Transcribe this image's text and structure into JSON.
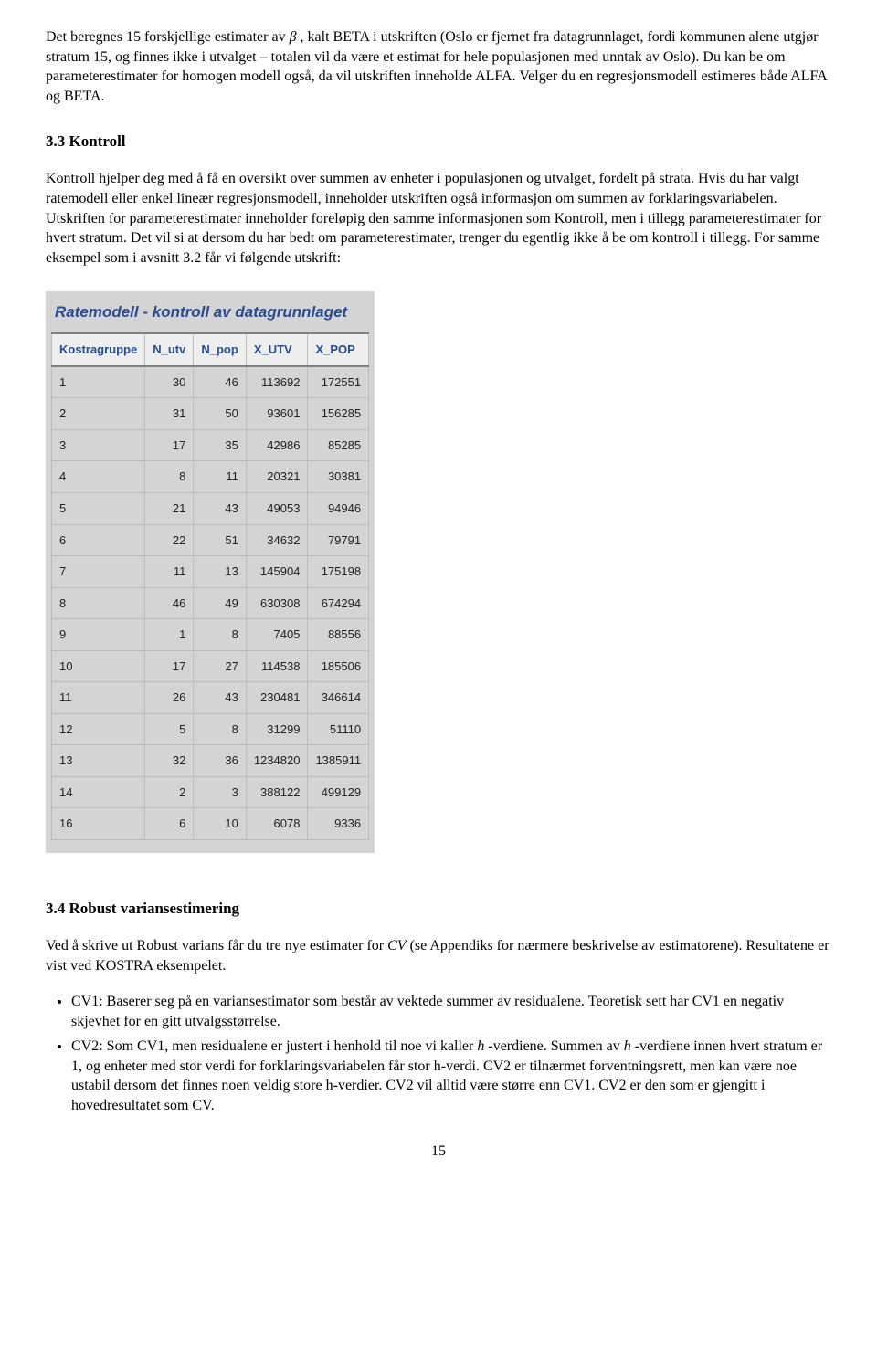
{
  "paragraphs": {
    "p1a": "Det beregnes 15 forskjellige estimater av ",
    "p1_beta": "β",
    "p1b": " , kalt BETA i utskriften (Oslo er fjernet fra datagrunnlaget, fordi kommunen alene utgjør stratum 15, og finnes ikke i utvalget – totalen vil da være et estimat for hele populasjonen med unntak av Oslo). Du kan be om parameterestimater for homogen modell også, da vil utskriften inneholde ALFA. Velger du en regresjonsmodell estimeres både ALFA og BETA."
  },
  "section33": {
    "heading": "3.3 Kontroll",
    "text": "Kontroll hjelper deg med å få en oversikt over summen av enheter i populasjonen og utvalget, fordelt på strata. Hvis du har valgt ratemodell eller enkel lineær regresjonsmodell, inneholder utskriften også informasjon om summen av forklaringsvariabelen. Utskriften for parameterestimater inneholder foreløpig den samme informasjonen som Kontroll, men i tillegg parameterestimater for hvert stratum. Det vil si at dersom du har bedt om parameterestimater, trenger du egentlig ikke å be om kontroll i tillegg. For samme eksempel som i avsnitt 3.2 får vi følgende utskrift:"
  },
  "table": {
    "title": "Ratemodell - kontroll av datagrunnlaget",
    "title_color": "#2a4d8f",
    "header_bg": "#eeeeee",
    "panel_bg": "#d4d4d4",
    "grid_color": "#bcbcbc",
    "header_color": "#2a4d8f",
    "font_family": "Arial",
    "columns": [
      "Kostragruppe",
      "N_utv",
      "N_pop",
      "X_UTV",
      "X_POP"
    ],
    "rows": [
      [
        "1",
        "30",
        "46",
        "113692",
        "172551"
      ],
      [
        "2",
        "31",
        "50",
        "93601",
        "156285"
      ],
      [
        "3",
        "17",
        "35",
        "42986",
        "85285"
      ],
      [
        "4",
        "8",
        "11",
        "20321",
        "30381"
      ],
      [
        "5",
        "21",
        "43",
        "49053",
        "94946"
      ],
      [
        "6",
        "22",
        "51",
        "34632",
        "79791"
      ],
      [
        "7",
        "11",
        "13",
        "145904",
        "175198"
      ],
      [
        "8",
        "46",
        "49",
        "630308",
        "674294"
      ],
      [
        "9",
        "1",
        "8",
        "7405",
        "88556"
      ],
      [
        "10",
        "17",
        "27",
        "114538",
        "185506"
      ],
      [
        "11",
        "26",
        "43",
        "230481",
        "346614"
      ],
      [
        "12",
        "5",
        "8",
        "31299",
        "51110"
      ],
      [
        "13",
        "32",
        "36",
        "1234820",
        "1385911"
      ],
      [
        "14",
        "2",
        "3",
        "388122",
        "499129"
      ],
      [
        "16",
        "6",
        "10",
        "6078",
        "9336"
      ]
    ]
  },
  "section34": {
    "heading": "3.4 Robust variansestimering",
    "intro_a": "Ved å skrive ut Robust varians får du tre nye estimater for ",
    "intro_cv": "CV",
    "intro_b": " (se Appendiks for nærmere beskrivelse av estimatorene). Resultatene er vist ved KOSTRA eksempelet.",
    "bullets": {
      "b1": "CV1: Baserer seg på en variansestimator som består av vektede summer av residualene. Teoretisk sett har CV1 en negativ skjevhet for en gitt utvalgsstørrelse.",
      "b2_a": "CV2: Som CV1, men residualene er justert i henhold til noe vi kaller ",
      "b2_h1": "h",
      "b2_b": " -verdiene. Summen av ",
      "b2_h2": "h",
      "b2_c": " -verdiene innen hvert stratum er 1, og enheter med stor verdi for forklaringsvariabelen får stor h-verdi. CV2 er tilnærmet forventningsrett, men kan være noe ustabil dersom det finnes noen veldig store h-verdier. CV2 vil alltid være større enn CV1. CV2 er den som er gjengitt i hovedresultatet som CV."
    }
  },
  "page_number": "15"
}
